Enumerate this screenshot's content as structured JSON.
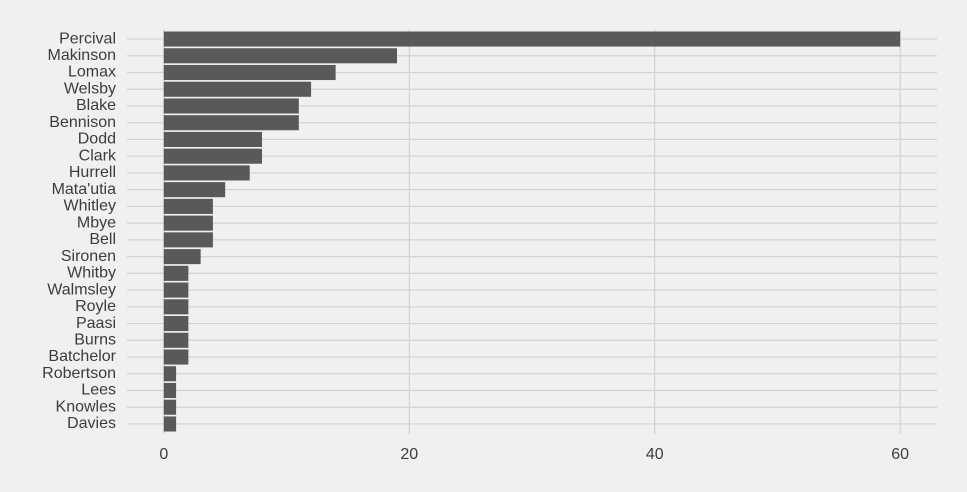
{
  "chart_data": {
    "type": "bar",
    "orientation": "horizontal",
    "categories": [
      "Percival",
      "Makinson",
      "Lomax",
      "Welsby",
      "Blake",
      "Bennison",
      "Dodd",
      "Clark",
      "Hurrell",
      "Mata'utia",
      "Whitley",
      "Mbye",
      "Bell",
      "Sironen",
      "Whitby",
      "Walmsley",
      "Royle",
      "Paasi",
      "Burns",
      "Batchelor",
      "Robertson",
      "Lees",
      "Knowles",
      "Davies"
    ],
    "values": [
      60,
      19,
      14,
      12,
      11,
      11,
      8,
      8,
      7,
      5,
      4,
      4,
      4,
      3,
      2,
      2,
      2,
      2,
      2,
      2,
      1,
      1,
      1,
      1
    ],
    "color": "#595959",
    "xlim": [
      -3,
      63
    ],
    "xticks": [
      0,
      20,
      40,
      60
    ],
    "grid": true
  }
}
